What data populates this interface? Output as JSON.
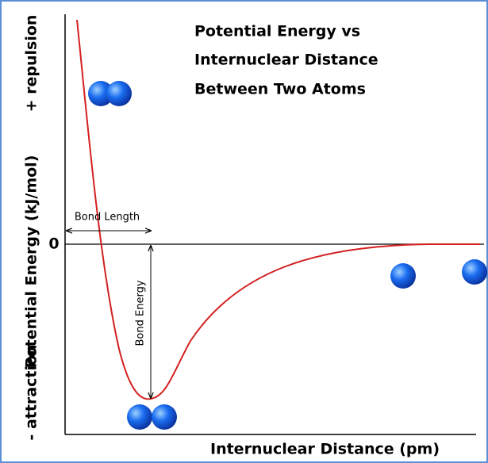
{
  "title_lines": [
    "Potential Energy vs",
    "Internuclear Distance",
    "Between Two Atoms"
  ],
  "y_axis": {
    "label": "Potential Energy (kJ/mol)",
    "top": "+ repulsion",
    "bottom": "- attraction",
    "zero": "0"
  },
  "x_axis": {
    "label": "Internuclear Distance (pm)"
  },
  "annotations": {
    "bond_length": "Bond Length",
    "bond_energy": "Bond Energy"
  }
}
